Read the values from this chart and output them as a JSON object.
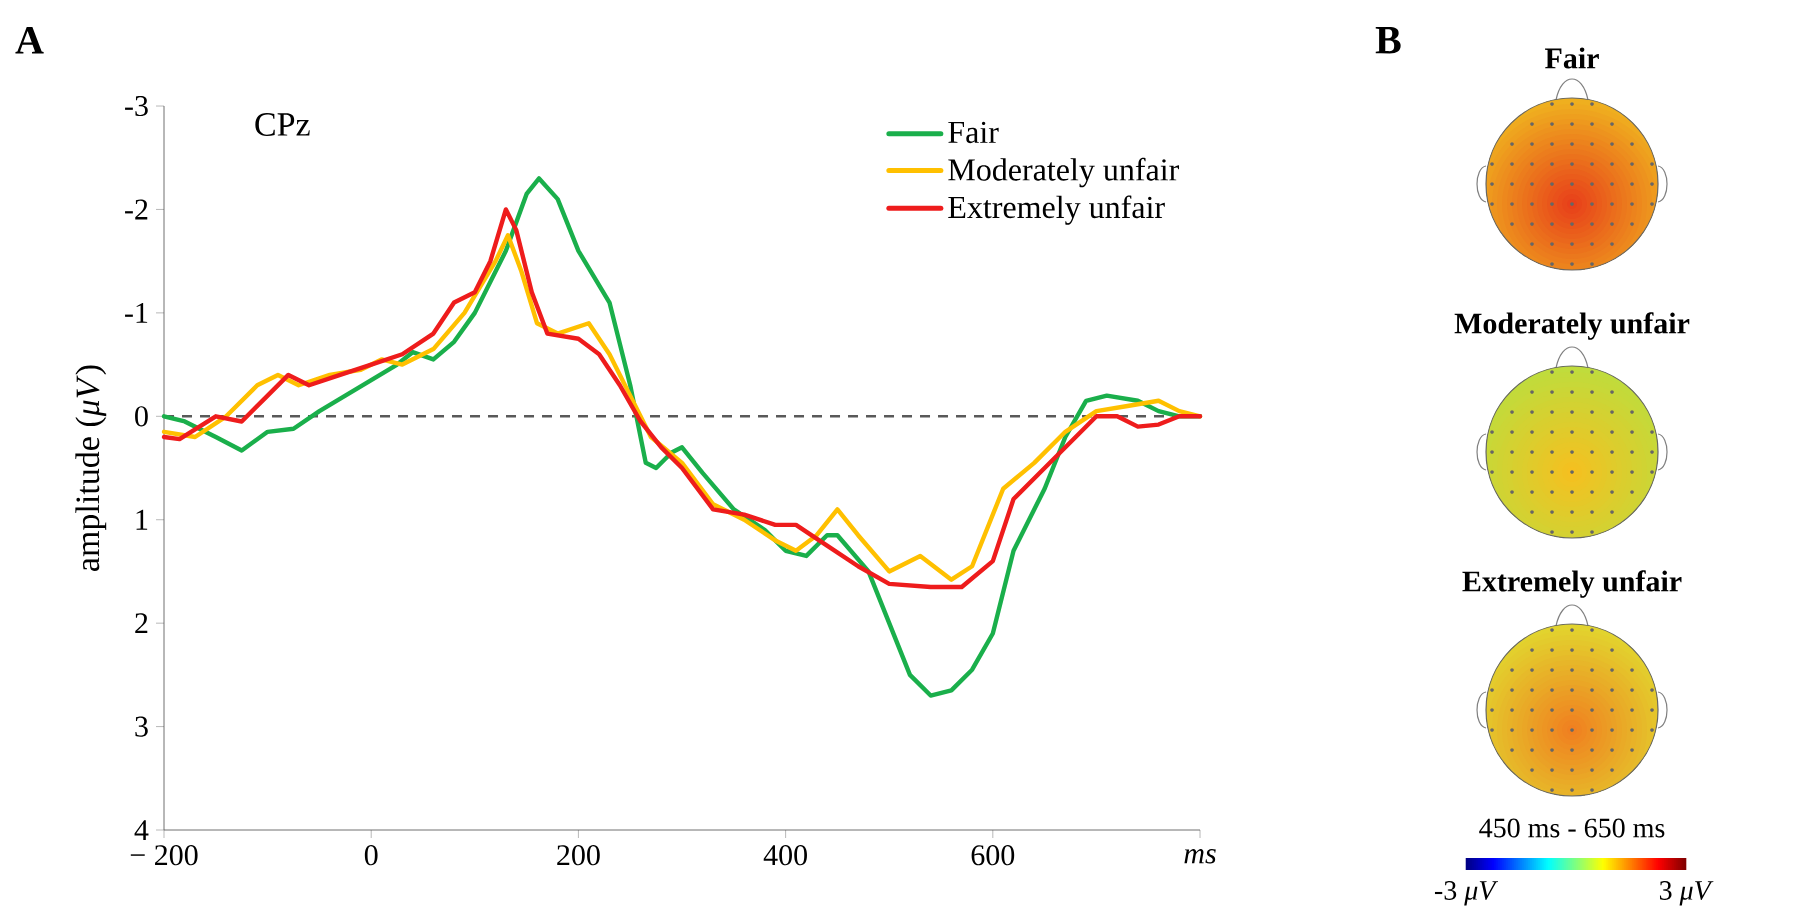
{
  "chart_data": [
    {
      "type": "line",
      "title": "A",
      "xlabel": "ms",
      "ylabel": "amplitude (*μV*)",
      "annotations": [
        "CPz"
      ],
      "xlim": [
        -200,
        800
      ],
      "ylim": [
        4,
        -3
      ],
      "xticks": [
        {
          "value": -200,
          "label": "− 200"
        },
        0,
        200,
        400,
        600,
        {
          "value": 800,
          "label": null
        }
      ],
      "yticks": [
        -3,
        -2,
        -1,
        0,
        1,
        2,
        3,
        4
      ],
      "legend": "top right",
      "line_style": "solid",
      "ref_lines": [
        {
          "axis": "y",
          "value": 0,
          "label": null,
          "color": "#595959",
          "line_style": "dashed"
        }
      ],
      "series": [
        {
          "name": "Fair",
          "color": "#1aaf4b",
          "x": [
            -200,
            -180,
            -150,
            -125,
            -100,
            -75,
            -50,
            -25,
            0,
            25,
            40,
            60,
            80,
            100,
            130,
            150,
            162,
            180,
            200,
            230,
            250,
            265,
            275,
            290,
            300,
            320,
            350,
            380,
            400,
            420,
            440,
            450,
            480,
            500,
            520,
            540,
            560,
            580,
            600,
            620,
            650,
            670,
            690,
            710,
            740,
            760,
            780,
            800
          ],
          "values": [
            0.0,
            0.05,
            0.2,
            0.33,
            0.15,
            0.12,
            -0.05,
            -0.2,
            -0.35,
            -0.5,
            -0.62,
            -0.55,
            -0.72,
            -1.0,
            -1.6,
            -2.15,
            -2.3,
            -2.1,
            -1.6,
            -1.1,
            -0.3,
            0.45,
            0.5,
            0.35,
            0.3,
            0.55,
            0.9,
            1.1,
            1.3,
            1.35,
            1.15,
            1.15,
            1.5,
            2.0,
            2.5,
            2.7,
            2.65,
            2.45,
            2.1,
            1.3,
            0.7,
            0.2,
            -0.15,
            -0.2,
            -0.15,
            -0.05,
            0.0,
            0.0
          ]
        },
        {
          "name": "Moderately unfair",
          "color": "#ffc000",
          "x": [
            -200,
            -170,
            -140,
            -110,
            -90,
            -70,
            -40,
            -10,
            10,
            30,
            60,
            90,
            120,
            132,
            145,
            160,
            180,
            210,
            230,
            250,
            270,
            300,
            330,
            360,
            390,
            410,
            430,
            450,
            470,
            500,
            530,
            560,
            580,
            610,
            640,
            670,
            700,
            730,
            760,
            780,
            800
          ],
          "values": [
            0.15,
            0.2,
            0.0,
            -0.3,
            -0.4,
            -0.3,
            -0.4,
            -0.45,
            -0.55,
            -0.5,
            -0.65,
            -1.0,
            -1.5,
            -1.75,
            -1.4,
            -0.9,
            -0.8,
            -0.9,
            -0.6,
            -0.2,
            0.2,
            0.45,
            0.85,
            1.0,
            1.2,
            1.3,
            1.15,
            0.9,
            1.15,
            1.5,
            1.35,
            1.58,
            1.45,
            0.7,
            0.45,
            0.15,
            -0.05,
            -0.1,
            -0.15,
            -0.05,
            0.0
          ]
        },
        {
          "name": "Extremely unfair",
          "color": "#ee1c1c",
          "x": [
            -200,
            -185,
            -150,
            -125,
            -100,
            -80,
            -60,
            -30,
            0,
            30,
            60,
            80,
            100,
            115,
            130,
            140,
            155,
            170,
            200,
            220,
            240,
            260,
            280,
            300,
            330,
            360,
            390,
            410,
            440,
            470,
            500,
            540,
            570,
            600,
            620,
            650,
            680,
            700,
            720,
            740,
            760,
            780,
            800
          ],
          "values": [
            0.2,
            0.22,
            0.0,
            0.05,
            -0.2,
            -0.4,
            -0.3,
            -0.4,
            -0.5,
            -0.6,
            -0.8,
            -1.1,
            -1.2,
            -1.5,
            -2.0,
            -1.8,
            -1.2,
            -0.8,
            -0.75,
            -0.6,
            -0.3,
            0.05,
            0.3,
            0.5,
            0.9,
            0.95,
            1.05,
            1.05,
            1.25,
            1.45,
            1.62,
            1.65,
            1.65,
            1.4,
            0.8,
            0.5,
            0.2,
            0.0,
            0.0,
            0.1,
            0.08,
            0.0,
            0.0
          ]
        }
      ]
    },
    {
      "type": "other",
      "title": "B",
      "categories": [
        "Fair",
        "Moderately unfair",
        "Extremely unfair"
      ],
      "annotations": [
        "450 ms - 650 ms",
        "-3 *μV*",
        "3 *μV*"
      ]
    }
  ]
}
